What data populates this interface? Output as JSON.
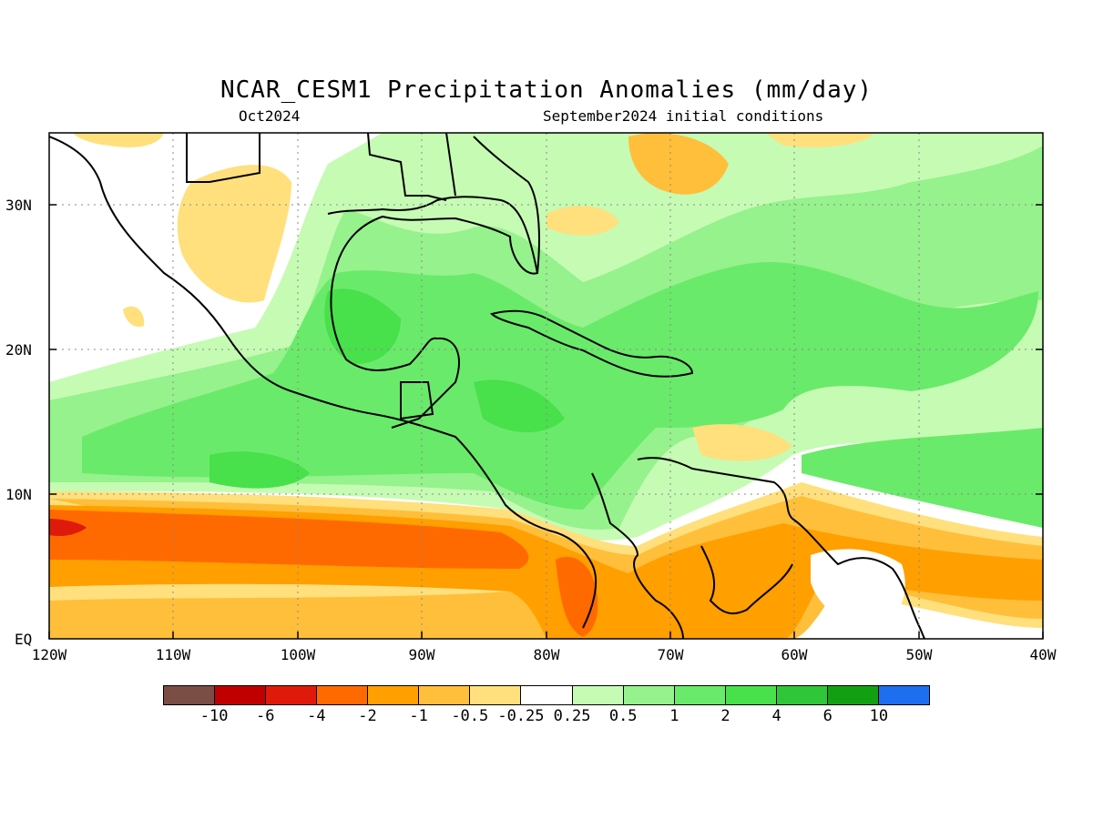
{
  "header": {
    "title": "NCAR_CESM1 Precipitation Anomalies (mm/day)",
    "valid_month": "Oct2024",
    "init_label": "September2024 initial conditions"
  },
  "map": {
    "lat_labels": [
      "30N",
      "20N",
      "10N",
      "EQ"
    ],
    "lon_labels": [
      "120W",
      "110W",
      "100W",
      "90W",
      "80W",
      "70W",
      "60W",
      "50W",
      "40W"
    ],
    "lat_range": [
      0,
      35
    ],
    "lon_range": [
      -120,
      -40
    ],
    "features": {
      "dry_itcz_band": "strong negative anomaly band near 5-10N across eastern Pacific",
      "wet_central_america": "positive anomalies over Gulf of Mexico, Caribbean and Atlantic",
      "dry_south_america": "negative anomalies over northern South America"
    }
  },
  "legend": {
    "colors": [
      "#7a4d45",
      "#c00000",
      "#e01a0a",
      "#ff6a00",
      "#ff9f00",
      "#ffbf3a",
      "#ffe07d",
      "#ffffff",
      "#c6fbb4",
      "#96f28c",
      "#6aea6a",
      "#48e04b",
      "#30c63a",
      "#12a012",
      "#1e6ef0"
    ],
    "labels": [
      "-10",
      "-6",
      "-4",
      "-2",
      "-1",
      "-0.5",
      "-0.25",
      "0.25",
      "0.5",
      "1",
      "2",
      "4",
      "6",
      "10"
    ]
  }
}
